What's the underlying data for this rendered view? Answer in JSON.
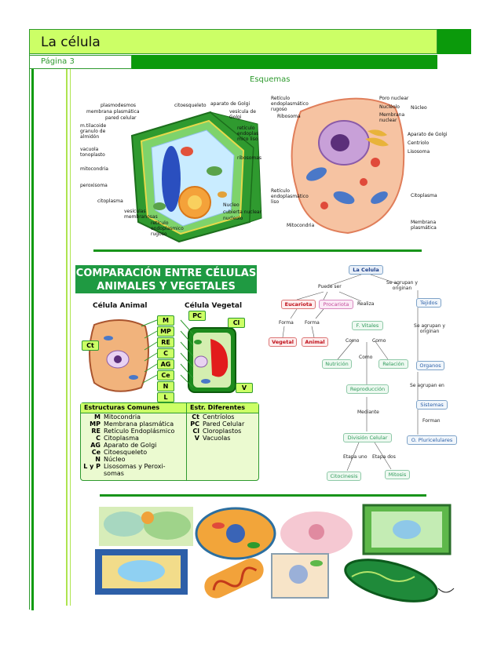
{
  "header": {
    "title": "La célula",
    "page_label": "Página 3"
  },
  "section": {
    "heading": "Esquemas"
  },
  "plant_cell": {
    "labels": [
      "plasmodesmos",
      "membrana plasmática",
      "pared celular",
      "m.tilacoide",
      "granulo de",
      "almidón",
      "vacuola",
      "tonoplasto",
      "mitocondria",
      "peroxisoma",
      "citoplasma",
      "citoesqueleto",
      "aparato de Golgi",
      "vesícula de",
      "Golgi",
      "retículo",
      "endoplas",
      "mico liso",
      "ribosomas",
      "Nucleo",
      "cubierta nuclear",
      "nucleolo",
      "vesículas",
      "membranosas",
      "retículo",
      "endoplasmico",
      "rugoso"
    ]
  },
  "animal_cell": {
    "labels": [
      "Retículo",
      "endoplasmático",
      "rugoso",
      "Ribosoma",
      "Poro nuclear",
      "Nucléolo",
      "Membrana",
      "nuclear",
      "Núcleo",
      "Aparato de Golgi",
      "Centriolo",
      "Lisosoma",
      "Retículo",
      "endoplasmático",
      "liso",
      "Citoplasma",
      "Mitocondria",
      "Membrana",
      "plasmática"
    ]
  },
  "comparison": {
    "title_line1": "COMPARACIÓN ENTRE CÉLULAS",
    "title_line2": "ANIMALES Y VEGETALES",
    "animal_label": "Célula Animal",
    "plant_label": "Célula Vegetal",
    "center_boxes": [
      "M",
      "MP",
      "RE",
      "C",
      "AG",
      "Ce",
      "N",
      "L"
    ],
    "side_boxes": {
      "ct": "Ct",
      "pc": "PC",
      "cl": "Cl",
      "v": "V"
    },
    "common_header": "Estructuras Comunes",
    "diff_header": "Estr. Diferentes",
    "common": [
      {
        "abbr": "M",
        "name": "Mitocondria"
      },
      {
        "abbr": "MP",
        "name": "Membrana plasmática"
      },
      {
        "abbr": "RE",
        "name": "Retículo Endoplásmico"
      },
      {
        "abbr": "C",
        "name": "Citoplasma"
      },
      {
        "abbr": "AG",
        "name": "Aparato de Golgi"
      },
      {
        "abbr": "Ce",
        "name": "Citoesqueleto"
      },
      {
        "abbr": "N",
        "name": "Núcleo"
      },
      {
        "abbr": "L y P",
        "name": "Lisosomas y Peroxi-"
      },
      {
        "abbr": "",
        "name": "somas"
      }
    ],
    "different": [
      {
        "abbr": "Ct",
        "name": "Centríolos"
      },
      {
        "abbr": "PC",
        "name": "Pared Celular"
      },
      {
        "abbr": "Cl",
        "name": "Cloroplastos"
      },
      {
        "abbr": "V",
        "name": "Vacuolas"
      }
    ]
  },
  "concept_map": {
    "root": "La Celula",
    "puede_ser": "Puede ser",
    "se_agrupan_originan": "Se agrupan y originan",
    "eucariota": "Eucariota",
    "procariota": "Procariota",
    "realiza": "Realiza",
    "forma1": "Forma",
    "forma2": "Forma",
    "vegetal": "Vegetal",
    "animal": "Animal",
    "f_vitales": "F. Vitales",
    "como1": "Como",
    "como2": "Como",
    "como3": "Como",
    "nutricion": "Nutrición",
    "relacion": "Relación",
    "reproduccion": "Reproducción",
    "mediante": "Mediante",
    "division": "División Celular",
    "etapa_uno": "Etapa uno",
    "etapa_dos": "Etapa dos",
    "citocinesis": "Citocinesis",
    "mitosis": "Mitosis",
    "tejidos": "Tejidos",
    "se_agrupan_originan2": "Se agrupan y originan",
    "organos": "Organos",
    "se_agrupan_en": "Se agrupan en",
    "sistemas": "Sistemas",
    "forman": "Forman",
    "o_pluricelulares": "O. Pluricelulares"
  }
}
